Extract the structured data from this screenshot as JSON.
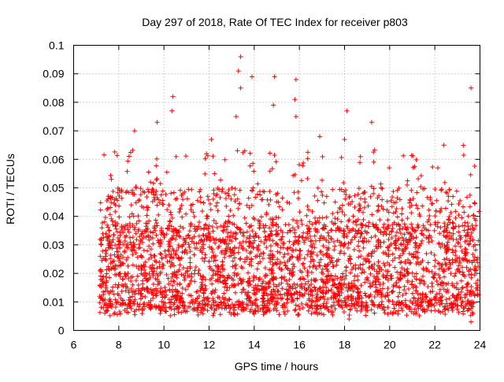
{
  "chart_data": {
    "type": "scatter",
    "title": "Day 297 of 2018, Rate Of TEC Index for receiver p803",
    "xlabel": "GPS time / hours",
    "ylabel": "ROTI / TECUs",
    "xlim": [
      6,
      24
    ],
    "ylim": [
      0,
      0.1
    ],
    "xticks": [
      "6",
      "8",
      "10",
      "12",
      "14",
      "16",
      "18",
      "20",
      "22",
      "24"
    ],
    "yticks": [
      "0",
      "0.01",
      "0.02",
      "0.03",
      "0.04",
      "0.05",
      "0.06",
      "0.07",
      "0.08",
      "0.09",
      "0.1"
    ],
    "grid": true,
    "marker": "+",
    "series_color": "#ff0000",
    "data_start_hours": 7.15,
    "data_end_hours": 23.95,
    "typical_range": [
      0.005,
      0.035
    ],
    "outliers": [
      {
        "x": 13.4,
        "y": 0.096
      },
      {
        "x": 13.3,
        "y": 0.091
      },
      {
        "x": 13.4,
        "y": 0.085
      },
      {
        "x": 13.9,
        "y": 0.089
      },
      {
        "x": 14.9,
        "y": 0.089
      },
      {
        "x": 14.85,
        "y": 0.079
      },
      {
        "x": 15.85,
        "y": 0.088
      },
      {
        "x": 15.8,
        "y": 0.081
      },
      {
        "x": 15.85,
        "y": 0.075
      },
      {
        "x": 10.4,
        "y": 0.082
      },
      {
        "x": 10.35,
        "y": 0.077
      },
      {
        "x": 9.7,
        "y": 0.073
      },
      {
        "x": 8.7,
        "y": 0.07
      },
      {
        "x": 18.1,
        "y": 0.077
      },
      {
        "x": 18.0,
        "y": 0.067
      },
      {
        "x": 19.2,
        "y": 0.073
      },
      {
        "x": 16.9,
        "y": 0.068
      },
      {
        "x": 23.6,
        "y": 0.085
      },
      {
        "x": 22.4,
        "y": 0.065
      },
      {
        "x": 12.1,
        "y": 0.067
      },
      {
        "x": 13.2,
        "y": 0.075
      },
      {
        "x": 23.6,
        "y": 0.003
      },
      {
        "x": 18.2,
        "y": 0.004
      }
    ]
  }
}
